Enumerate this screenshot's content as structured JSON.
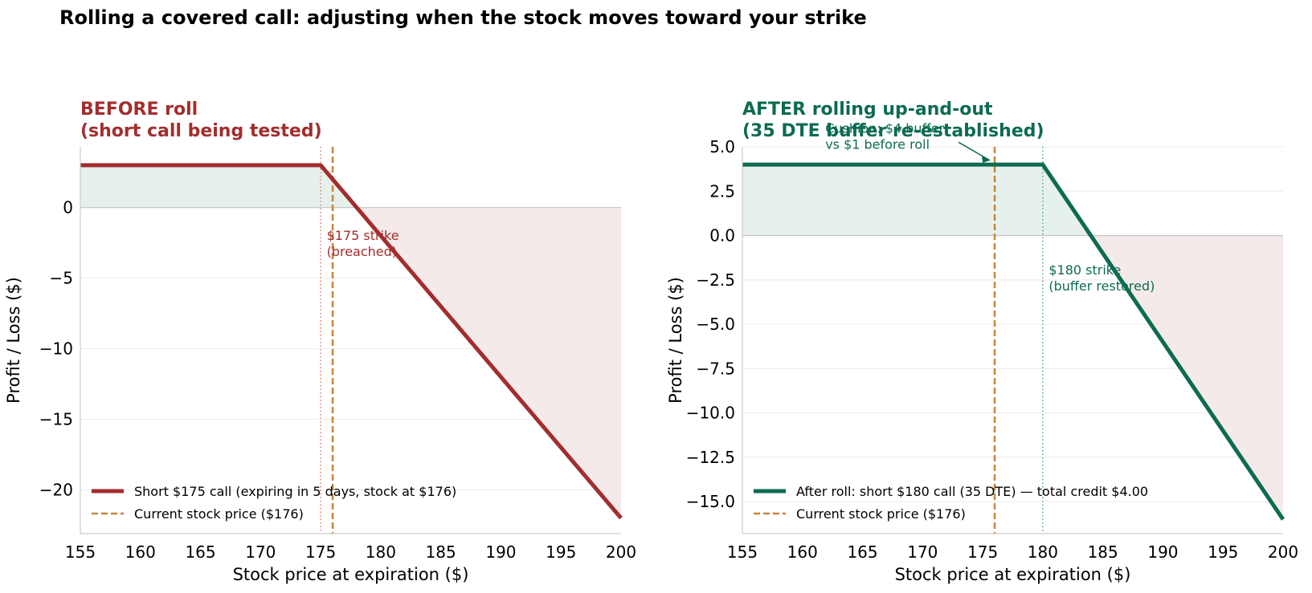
{
  "suptitle": "Rolling a covered call: adjusting when the stock moves toward your strike",
  "colors": {
    "before": "#a32d2d",
    "after": "#0d6b52",
    "current_price": "#c8863a",
    "profit_fill": "#e6f0ec",
    "loss_fill": "#f5eaea",
    "grid": "#ebebeb",
    "spine": "#cccccc"
  },
  "chart_data": [
    {
      "type": "line",
      "title": "BEFORE roll\n(short call being tested)",
      "xlabel": "Stock price at expiration ($)",
      "ylabel": "Profit / Loss ($)",
      "xlim": [
        155,
        200
      ],
      "ylim": [
        -23.1,
        4.3
      ],
      "xticks": [
        155,
        160,
        165,
        170,
        175,
        180,
        185,
        190,
        195,
        200
      ],
      "yticks": [
        0,
        -5,
        -10,
        -15,
        -20
      ],
      "ytick_labels": [
        "0",
        "−5",
        "−10",
        "−15",
        "−20"
      ],
      "grid": true,
      "legend_position": "lower-left",
      "series": [
        {
          "name": "Short $175 call (expiring in 5 days, stock at $176)",
          "style": "solid",
          "x": [
            155,
            175,
            200
          ],
          "y": [
            3,
            3,
            -22
          ]
        }
      ],
      "current_price": {
        "name": "Current stock price ($176)",
        "x": 176
      },
      "strike": {
        "x": 175
      },
      "annotations": [
        {
          "text": "$175 strike\n(breached)",
          "x": 175.5,
          "y": -2.3
        }
      ]
    },
    {
      "type": "line",
      "title": "AFTER rolling up-and-out\n(35 DTE buffer re-established)",
      "xlabel": "Stock price at expiration ($)",
      "ylabel": "Profit / Loss ($)",
      "xlim": [
        155,
        200
      ],
      "ylim": [
        -16.8,
        5.0
      ],
      "xticks": [
        155,
        160,
        165,
        170,
        175,
        180,
        185,
        190,
        195,
        200
      ],
      "yticks": [
        5.0,
        2.5,
        0.0,
        -2.5,
        -5.0,
        -7.5,
        -10.0,
        -12.5,
        -15.0
      ],
      "ytick_labels": [
        "5.0",
        "2.5",
        "0.0",
        "−2.5",
        "−5.0",
        "−7.5",
        "−10.0",
        "−12.5",
        "−15.0"
      ],
      "grid": true,
      "legend_position": "lower-left",
      "series": [
        {
          "name": "After roll: short $180 call (35 DTE) — total credit $4.00",
          "style": "solid",
          "x": [
            155,
            180,
            200
          ],
          "y": [
            4,
            4,
            -16
          ]
        }
      ],
      "current_price": {
        "name": "Current stock price ($176)",
        "x": 176
      },
      "strike": {
        "x": 180
      },
      "annotations": [
        {
          "text": "$180 strike\n(buffer restored)",
          "x": 180.5,
          "y": -2.2
        },
        {
          "text": "Cushion: $4 buffer\nvs $1 before roll",
          "x": 161.9,
          "y": 5.8,
          "arrow_to": [
            176,
            4.1
          ]
        }
      ]
    }
  ]
}
